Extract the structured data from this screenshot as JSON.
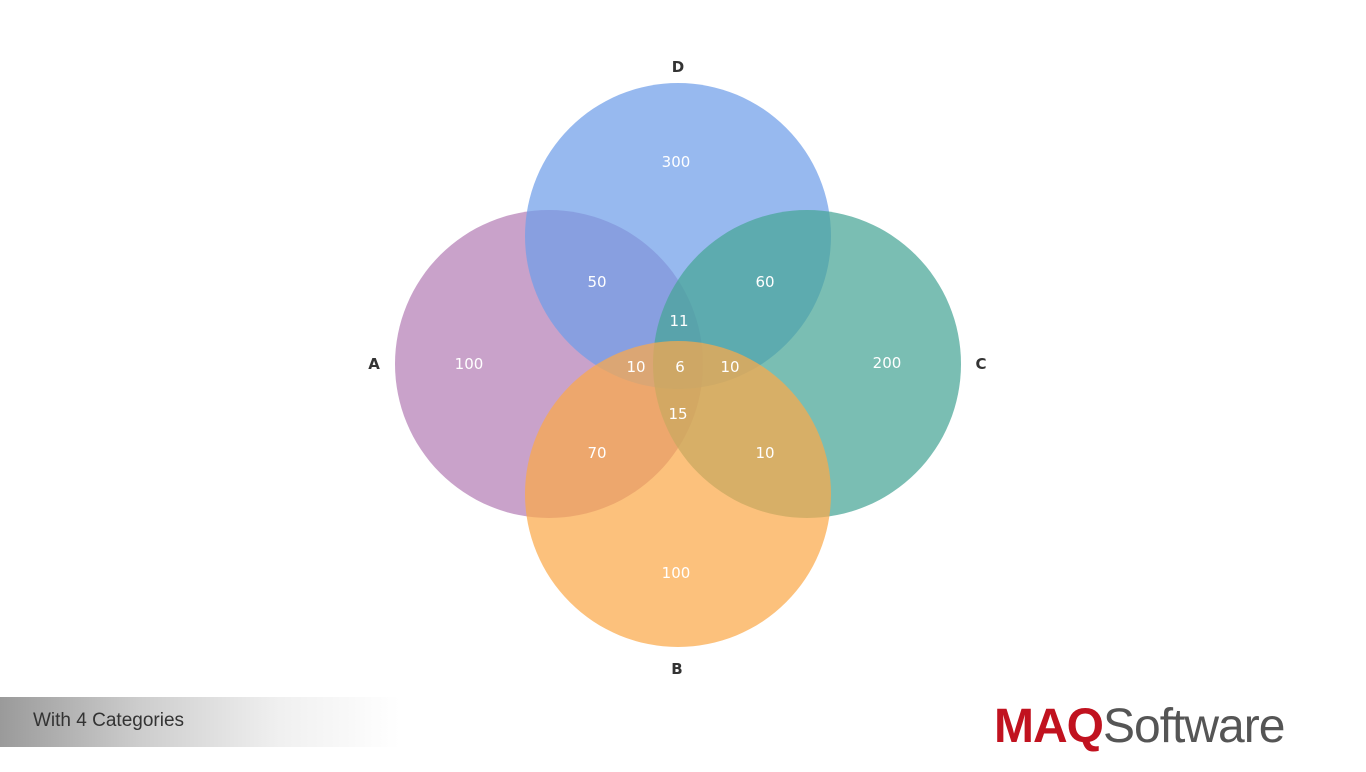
{
  "colors": {
    "A": "#b47eb5",
    "B": "#fba94a",
    "C": "#46a596",
    "D": "#6f9ee9",
    "label_text": "#ffffff",
    "set_label_text": "#333333",
    "logo_maq": "#c1121f",
    "logo_software": "#555555"
  },
  "sets": {
    "A": {
      "label": "A",
      "only": "100"
    },
    "B": {
      "label": "B",
      "only": "100"
    },
    "C": {
      "label": "C",
      "only": "200"
    },
    "D": {
      "label": "D",
      "only": "300"
    }
  },
  "regions": {
    "AD": "50",
    "CD": "60",
    "AB": "70",
    "BC": "10",
    "AD_CD": "11",
    "A_side_center": "10",
    "center": "6",
    "C_side_center": "10",
    "AB_BC": "15"
  },
  "caption": "With 4 Categories",
  "logo": {
    "maq": "MAQ",
    "software": "Software"
  }
}
